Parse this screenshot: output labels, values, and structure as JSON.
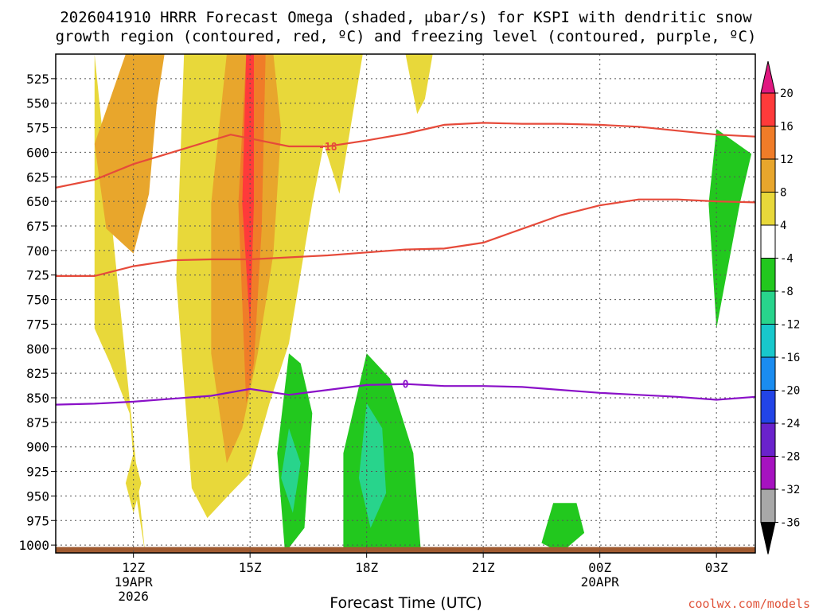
{
  "chart_data": {
    "type": "time-height contour",
    "title_line1": "2026041910 HRRR Forecast Omega (shaded, μbar/s) for KSPI with dendritic snow",
    "title_line2": "growth region (contoured, red, ºC) and freezing level (contoured, purple, ºC)",
    "xlabel": "Forecast Time (UTC)",
    "credit": "coolwx.com/models",
    "x_start_hour": 10,
    "x_end_hour": 28,
    "y_levels": [
      525,
      550,
      575,
      600,
      625,
      650,
      675,
      700,
      725,
      750,
      775,
      800,
      825,
      850,
      875,
      900,
      925,
      950,
      975,
      1000
    ],
    "y_label_values": [
      "525",
      "550",
      "575",
      "600",
      "625",
      "650",
      "675",
      "700",
      "725",
      "750",
      "775",
      "800",
      "825",
      "850",
      "875",
      "900",
      "925",
      "950",
      "975",
      "1000"
    ],
    "y_top_hpa": 500,
    "y_bottom_hpa": 1008,
    "x_ticks": [
      {
        "hour": 12,
        "label": "12Z",
        "sub1": "19APR",
        "sub2": "2026"
      },
      {
        "hour": 15,
        "label": "15Z",
        "sub1": "",
        "sub2": ""
      },
      {
        "hour": 18,
        "label": "18Z",
        "sub1": "",
        "sub2": ""
      },
      {
        "hour": 21,
        "label": "21Z",
        "sub1": "",
        "sub2": ""
      },
      {
        "hour": 24,
        "label": "00Z",
        "sub1": "20APR",
        "sub2": ""
      },
      {
        "hour": 27,
        "label": "03Z",
        "sub1": "",
        "sub2": ""
      }
    ],
    "colorbar": {
      "labels": [
        "20",
        "16",
        "12",
        "8",
        "4",
        "-4",
        "-8",
        "-12",
        "-16",
        "-20",
        "-24",
        "-28",
        "-32",
        "-36"
      ],
      "colors": [
        "#ff3a3a",
        "#f07c28",
        "#e8a62c",
        "#e8d83a",
        "#ffffff",
        "#22c81e",
        "#28d48c",
        "#18c8cc",
        "#1a8cf0",
        "#2244e6",
        "#6a22cc",
        "#a612c0",
        "#a8a8a8"
      ],
      "top_arrow_color": "#e01880",
      "bottom_arrow_color": "#000000"
    },
    "omega_fill_regions": [
      {
        "name": "band-west",
        "color": "#e8d83a",
        "points": [
          [
            11,
            0
          ],
          [
            11,
            0.55
          ],
          [
            11.4,
            0.62
          ],
          [
            11.9,
            0.72
          ],
          [
            12.1,
            0.9
          ],
          [
            12.3,
            1.0
          ]
        ]
      },
      {
        "name": "band-west-core",
        "color": "#e8a62c",
        "points": [
          [
            11.8,
            0
          ],
          [
            11.0,
            0.18
          ],
          [
            11.3,
            0.35
          ],
          [
            12,
            0.4
          ],
          [
            12.4,
            0.28
          ],
          [
            12.6,
            0.1
          ],
          [
            12.8,
            0
          ]
        ]
      },
      {
        "name": "sliver-12z",
        "color": "#e8d83a",
        "points": [
          [
            12.0,
            0.8
          ],
          [
            11.8,
            0.86
          ],
          [
            12.0,
            0.92
          ],
          [
            12.2,
            0.86
          ]
        ]
      },
      {
        "name": "band-main",
        "color": "#e8d83a",
        "points": [
          [
            13.3,
            0
          ],
          [
            13.1,
            0.45
          ],
          [
            13.5,
            0.87
          ],
          [
            13.9,
            0.93
          ],
          [
            14.5,
            0.88
          ],
          [
            15.0,
            0.84
          ],
          [
            15.5,
            0.7
          ],
          [
            16.0,
            0.58
          ],
          [
            16.6,
            0.3
          ],
          [
            16.9,
            0.18
          ],
          [
            17.3,
            0.28
          ],
          [
            17.9,
            0.0
          ]
        ]
      },
      {
        "name": "band-main-orange",
        "color": "#e8a62c",
        "points": [
          [
            14.4,
            0
          ],
          [
            14.0,
            0.3
          ],
          [
            14.0,
            0.6
          ],
          [
            14.4,
            0.82
          ],
          [
            14.8,
            0.75
          ],
          [
            15.2,
            0.6
          ],
          [
            15.6,
            0.4
          ],
          [
            15.8,
            0.15
          ],
          [
            15.6,
            0
          ]
        ]
      },
      {
        "name": "band-main-deep",
        "color": "#f07c28",
        "points": [
          [
            14.9,
            0
          ],
          [
            14.7,
            0.3
          ],
          [
            14.9,
            0.7
          ],
          [
            15.1,
            0.62
          ],
          [
            15.3,
            0.35
          ],
          [
            15.4,
            0
          ]
        ]
      },
      {
        "name": "band-main-red",
        "color": "#ff3a3a",
        "points": [
          [
            14.9,
            0
          ],
          [
            14.8,
            0.3
          ],
          [
            15.0,
            0.55
          ],
          [
            15.1,
            0.3
          ],
          [
            15.1,
            0
          ]
        ]
      },
      {
        "name": "band-east-tail",
        "color": "#e8d83a",
        "points": [
          [
            19.0,
            0
          ],
          [
            19.3,
            0.12
          ],
          [
            19.5,
            0.09
          ],
          [
            19.7,
            0.0
          ]
        ]
      },
      {
        "name": "sink-16z",
        "color": "#22c81e",
        "points": [
          [
            16.0,
            0.6
          ],
          [
            15.7,
            0.8
          ],
          [
            15.9,
            1.0
          ],
          [
            16.4,
            0.95
          ],
          [
            16.6,
            0.72
          ],
          [
            16.3,
            0.62
          ]
        ]
      },
      {
        "name": "sink-16z-core",
        "color": "#28d48c",
        "points": [
          [
            16.0,
            0.75
          ],
          [
            15.8,
            0.85
          ],
          [
            16.1,
            0.92
          ],
          [
            16.3,
            0.82
          ]
        ]
      },
      {
        "name": "sink-18z",
        "color": "#22c81e",
        "points": [
          [
            18.0,
            0.6
          ],
          [
            17.4,
            0.8
          ],
          [
            17.4,
            1.0
          ],
          [
            19.4,
            1.0
          ],
          [
            19.2,
            0.8
          ],
          [
            18.6,
            0.65
          ]
        ]
      },
      {
        "name": "sink-18z-core",
        "color": "#28d48c",
        "points": [
          [
            18.0,
            0.7
          ],
          [
            17.8,
            0.85
          ],
          [
            18.1,
            0.95
          ],
          [
            18.5,
            0.88
          ],
          [
            18.4,
            0.75
          ]
        ]
      },
      {
        "name": "sink-23z",
        "color": "#22c81e",
        "points": [
          [
            22.8,
            0.9
          ],
          [
            22.5,
            0.98
          ],
          [
            23.0,
            1.0
          ],
          [
            23.6,
            0.96
          ],
          [
            23.4,
            0.9
          ]
        ]
      },
      {
        "name": "sink-03z",
        "color": "#22c81e",
        "points": [
          [
            27.0,
            0.15
          ],
          [
            26.8,
            0.3
          ],
          [
            27.0,
            0.55
          ],
          [
            27.6,
            0.3
          ],
          [
            27.9,
            0.2
          ]
        ]
      }
    ],
    "series": [
      {
        "name": "dgz-upper (-18 ºC)",
        "color": "#e64a3a",
        "label": "-18",
        "label_hour": 17.0,
        "points": [
          [
            10,
            636
          ],
          [
            11,
            628
          ],
          [
            12,
            612
          ],
          [
            13,
            600
          ],
          [
            14,
            588
          ],
          [
            14.5,
            582
          ],
          [
            15,
            586
          ],
          [
            16,
            594
          ],
          [
            17,
            594
          ],
          [
            18,
            588
          ],
          [
            19,
            581
          ],
          [
            20,
            572
          ],
          [
            21,
            570
          ],
          [
            22,
            571
          ],
          [
            23,
            571
          ],
          [
            24,
            572
          ],
          [
            25,
            574
          ],
          [
            26,
            578
          ],
          [
            27,
            582
          ],
          [
            28,
            584
          ]
        ]
      },
      {
        "name": "dgz-lower",
        "color": "#e64a3a",
        "label": "",
        "label_hour": 0,
        "points": [
          [
            10,
            726
          ],
          [
            11,
            726
          ],
          [
            12,
            716
          ],
          [
            13,
            710
          ],
          [
            14,
            709
          ],
          [
            15,
            709
          ],
          [
            16,
            707
          ],
          [
            17,
            705
          ],
          [
            18,
            702
          ],
          [
            19,
            699
          ],
          [
            20,
            698
          ],
          [
            21,
            692
          ],
          [
            22,
            678
          ],
          [
            23,
            664
          ],
          [
            24,
            654
          ],
          [
            25,
            648
          ],
          [
            26,
            648
          ],
          [
            27,
            650
          ],
          [
            28,
            651
          ]
        ]
      },
      {
        "name": "freezing-level (0 ºC)",
        "color": "#8a10c8",
        "label": "0",
        "label_hour": 19.0,
        "points": [
          [
            10,
            857
          ],
          [
            11,
            856
          ],
          [
            12,
            854
          ],
          [
            13,
            851
          ],
          [
            14,
            848
          ],
          [
            15,
            841
          ],
          [
            16,
            847
          ],
          [
            17,
            842
          ],
          [
            18,
            837
          ],
          [
            19,
            836
          ],
          [
            20,
            838
          ],
          [
            21,
            838
          ],
          [
            22,
            839
          ],
          [
            23,
            842
          ],
          [
            24,
            845
          ],
          [
            25,
            847
          ],
          [
            26,
            849
          ],
          [
            27,
            852
          ],
          [
            28,
            849
          ]
        ]
      }
    ],
    "surface": {
      "color": "#a05a30",
      "pressure_hpa": 1002
    }
  }
}
